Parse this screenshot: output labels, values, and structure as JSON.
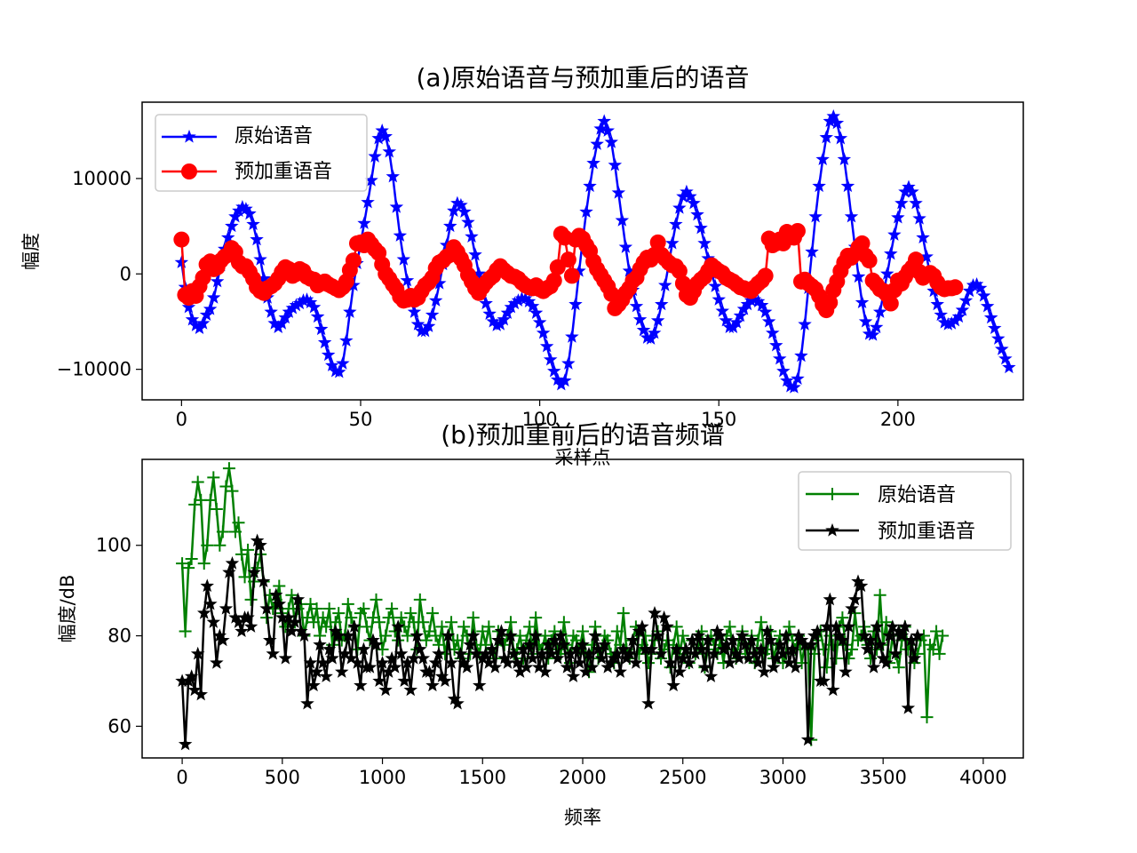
{
  "chart_data": [
    {
      "type": "line",
      "title": "(a)原始语音与预加重后的语音",
      "xlabel": "采样点",
      "ylabel": "幅度",
      "xlim": [
        -11,
        235
      ],
      "ylim": [
        -13200,
        18000
      ],
      "xticks": [
        0,
        50,
        100,
        150,
        200
      ],
      "yticks": [
        -10000,
        0,
        10000
      ],
      "ytick_labels": [
        "−10000",
        "0",
        "10000"
      ],
      "legend_position": "upper-left",
      "grid": false,
      "x": "0..224 (sample index)",
      "series": [
        {
          "name": "原始语音",
          "color": "#0000ff",
          "marker": "star",
          "values": [
            1200,
            -1400,
            -3500,
            -4800,
            -5400,
            -5700,
            -5200,
            -4300,
            -3700,
            -2500,
            -800,
            900,
            2600,
            3800,
            5000,
            6000,
            6600,
            7000,
            6800,
            6300,
            5200,
            3600,
            1500,
            -500,
            -2500,
            -4000,
            -5200,
            -5600,
            -5200,
            -4600,
            -4000,
            -3600,
            -3300,
            -3100,
            -2800,
            -2700,
            -3000,
            -3500,
            -4500,
            -5800,
            -7200,
            -8500,
            -9600,
            -10200,
            -10300,
            -9400,
            -7000,
            -4000,
            -1200,
            1100,
            3200,
            5300,
            7500,
            9800,
            12300,
            14200,
            15000,
            14400,
            12800,
            10200,
            7000,
            4000,
            1500,
            -700,
            -2500,
            -4000,
            -5300,
            -6000,
            -6000,
            -5500,
            -4300,
            -2800,
            -1000,
            1000,
            3000,
            5000,
            6600,
            7400,
            7200,
            6500,
            5400,
            3900,
            2000,
            0,
            -1700,
            -3100,
            -4200,
            -5000,
            -5400,
            -5300,
            -4800,
            -4100,
            -3500,
            -3100,
            -2800,
            -2600,
            -2600,
            -2900,
            -3400,
            -4100,
            -5100,
            -6200,
            -7600,
            -9000,
            -10200,
            -11100,
            -11600,
            -11200,
            -9400,
            -6600,
            -3200,
            300,
            3500,
            6500,
            9200,
            11600,
            13600,
            15200,
            16000,
            15000,
            13800,
            11400,
            8500,
            5600,
            2800,
            300,
            -1700,
            -3400,
            -4800,
            -5900,
            -6700,
            -6800,
            -6200,
            -4900,
            -3200,
            -1200,
            1000,
            3200,
            5200,
            6900,
            8100,
            8600,
            8100,
            7400,
            6200,
            4800,
            3200,
            1600,
            100,
            -1300,
            -2700,
            -3900,
            -4900,
            -5600,
            -5600,
            -5100,
            -4400,
            -3700,
            -3200,
            -2800,
            -2700,
            -2900,
            -3300,
            -4000,
            -5000,
            -6200,
            -7500,
            -8900,
            -10200,
            -11200,
            -11800,
            -11900,
            -11000,
            -8600,
            -5300,
            -1500,
            2300,
            6000,
            9200,
            12000,
            14300,
            16000,
            16500,
            15800,
            14200,
            12000,
            9200,
            6000,
            2800,
            -300,
            -3000,
            -5000,
            -6300,
            -6400,
            -5600,
            -4000,
            -2000,
            0,
            2100,
            4100,
            5900,
            7400,
            8600,
            9100,
            8600,
            7400,
            5800,
            3800,
            1800,
            -100,
            -1800,
            -3200,
            -4300,
            -5100,
            -5300,
            -5200,
            -4900,
            -4500,
            -3800,
            -2800,
            -1800,
            -1200,
            -1100,
            -1500,
            -2300,
            -3400,
            -4600,
            -5700,
            -6800,
            -7900,
            -8900,
            -9800
          ]
        },
        {
          "name": "预加重语音",
          "color": "#ff0000",
          "marker": "circle",
          "values": [
            3600,
            -2200,
            -2500,
            -1800,
            -2300,
            -1300,
            -400,
            1000,
            1300,
            500,
            700,
            1400,
            1800,
            2000,
            2700,
            2300,
            1200,
            800,
            800,
            200,
            -500,
            -1400,
            -1800,
            -2000,
            -1500,
            -1300,
            -1000,
            -500,
            200,
            700,
            500,
            -200,
            0,
            500,
            300,
            -300,
            -500,
            -600,
            -1200,
            -1000,
            -800,
            -1100,
            -1300,
            -1500,
            -1700,
            -1400,
            -800,
            400,
            1400,
            3200,
            3300,
            3000,
            3600,
            3100,
            2600,
            2200,
            1000,
            0,
            -500,
            -1100,
            -1600,
            -2400,
            -2800,
            -2700,
            -2300,
            -2700,
            -2500,
            -1800,
            -1200,
            -900,
            -400,
            600,
            1200,
            1400,
            1800,
            2000,
            2800,
            2300,
            1600,
            900,
            -100,
            -800,
            -1500,
            -2000,
            -1400,
            -900,
            -500,
            -200,
            400,
            800,
            400,
            100,
            -200,
            -300,
            -500,
            -900,
            -1200,
            -1400,
            -1500,
            -1200,
            -1600,
            -1800,
            -1500,
            -1300,
            -700,
            700,
            4200,
            3800,
            1500,
            -200,
            3600,
            4000,
            3700,
            3000,
            2400,
            1300,
            500,
            -100,
            -700,
            -1300,
            -2100,
            -3600,
            -3200,
            -2700,
            -2000,
            -1500,
            -700,
            -400,
            500,
            1200,
            1700,
            1500,
            2000,
            3300,
            2000,
            1600,
            1200,
            900,
            800,
            300,
            -1000,
            -2200,
            -2500,
            -1800,
            -1000,
            -600,
            -300,
            300,
            900,
            600,
            300,
            100,
            -400,
            -600,
            -800,
            -1100,
            -1400,
            -1500,
            -1700,
            -1800,
            -1400,
            -1000,
            -700,
            -200,
            3700,
            3000,
            3200,
            3600,
            3200,
            4400,
            4100,
            3800,
            4500,
            -800,
            -600,
            -1000,
            -1300,
            -1600,
            -2300,
            -3200,
            -3800,
            -3000,
            -1700,
            -800,
            300,
            1200,
            1900,
            1700,
            2100,
            2800,
            3200,
            1900,
            1400,
            -700,
            -1100,
            -1600,
            -1800,
            -2200,
            -3100,
            -1700,
            -700,
            -1000,
            -300,
            300,
            700,
            1500,
            200,
            -400,
            -100,
            100,
            -200,
            -900,
            -1400,
            -1600,
            -1500,
            -1500,
            -1400
          ]
        }
      ]
    },
    {
      "type": "line",
      "title": "(b)预加重前后的语音频谱",
      "xlabel": "频率",
      "ylabel": "幅度/dB",
      "xlim": [
        -200,
        4200
      ],
      "ylim": [
        53,
        119
      ],
      "xticks": [
        0,
        500,
        1000,
        1500,
        2000,
        2500,
        3000,
        3500,
        4000
      ],
      "yticks": [
        60,
        80,
        100
      ],
      "legend_position": "upper-right",
      "grid": false,
      "x": "0..4000 step 15.625 Hz",
      "series": [
        {
          "name": "原始语音",
          "color": "#008000",
          "marker": "plus",
          "values": [
            96,
            81,
            95,
            97,
            109,
            114,
            110,
            96,
            100,
            110,
            115,
            108,
            100,
            103,
            113,
            117,
            112,
            103,
            105,
            98,
            93,
            99,
            88,
            92,
            95,
            98,
            92,
            84,
            89,
            86,
            88,
            91,
            85,
            82,
            86,
            89,
            83,
            86,
            87,
            80,
            84,
            87,
            83,
            86,
            80,
            84,
            82,
            86,
            78,
            83,
            85,
            79,
            80,
            87,
            84,
            82,
            77,
            85,
            86,
            82,
            79,
            84,
            88,
            83,
            77,
            80,
            84,
            86,
            81,
            79,
            84,
            82,
            80,
            85,
            83,
            77,
            88,
            83,
            79,
            81,
            85,
            80,
            78,
            82,
            76,
            80,
            83,
            77,
            79,
            75,
            82,
            80,
            76,
            84,
            78,
            76,
            81,
            78,
            82,
            77,
            75,
            81,
            79,
            78,
            80,
            83,
            76,
            77,
            80,
            75,
            79,
            82,
            76,
            84,
            78,
            77,
            80,
            75,
            79,
            81,
            77,
            76,
            83,
            78,
            74,
            80,
            79,
            77,
            81,
            76,
            72,
            78,
            82,
            75,
            77,
            80,
            79,
            76,
            74,
            81,
            78,
            85,
            77,
            75,
            79,
            82,
            76,
            78,
            80,
            74,
            76,
            79,
            81,
            75,
            77,
            79,
            73,
            78,
            82,
            76,
            80,
            77,
            74,
            79,
            76,
            78,
            81,
            73,
            77,
            80,
            78,
            76,
            79,
            74,
            80,
            82,
            77,
            75,
            79,
            81,
            76,
            78,
            80,
            74,
            79,
            83,
            76,
            77,
            81,
            75,
            78,
            80,
            74,
            76,
            82,
            79,
            77,
            80,
            74,
            78,
            77,
            57,
            76,
            79,
            81,
            77,
            73,
            80,
            78,
            75,
            82,
            84,
            78,
            75,
            77,
            85,
            79,
            80,
            82,
            78,
            75,
            81,
            77,
            89,
            78,
            83,
            74,
            80,
            76,
            73,
            79,
            82,
            77,
            78,
            74,
            76,
            79,
            80,
            62,
            78,
            77,
            81,
            76,
            80
          ]
        },
        {
          "name": "预加重语音",
          "color": "#000000",
          "marker": "star",
          "values": [
            70,
            56,
            70,
            71,
            68,
            76,
            67,
            85,
            91,
            87,
            83,
            74,
            80,
            79,
            86,
            94,
            96,
            84,
            83,
            81,
            84,
            84,
            82,
            94,
            101,
            100,
            92,
            86,
            79,
            76,
            89,
            87,
            84,
            75,
            84,
            81,
            83,
            88,
            81,
            80,
            65,
            74,
            69,
            72,
            78,
            74,
            71,
            77,
            75,
            81,
            80,
            72,
            76,
            80,
            75,
            82,
            74,
            69,
            77,
            73,
            73,
            79,
            78,
            70,
            74,
            68,
            72,
            75,
            73,
            82,
            76,
            70,
            74,
            68,
            75,
            80,
            77,
            75,
            72,
            72,
            69,
            74,
            76,
            71,
            70,
            80,
            74,
            66,
            65,
            76,
            74,
            73,
            78,
            80,
            76,
            69,
            75,
            76,
            74,
            77,
            73,
            79,
            81,
            75,
            74,
            80,
            76,
            74,
            72,
            77,
            73,
            78,
            75,
            80,
            73,
            76,
            72,
            78,
            76,
            79,
            75,
            80,
            78,
            73,
            76,
            71,
            77,
            74,
            78,
            72,
            76,
            73,
            80,
            77,
            75,
            78,
            73,
            74,
            75,
            76,
            72,
            77,
            75,
            76,
            79,
            74,
            81,
            82,
            77,
            65,
            77,
            85,
            80,
            76,
            84,
            82,
            74,
            69,
            77,
            72,
            75,
            77,
            74,
            79,
            76,
            80,
            77,
            73,
            79,
            71,
            76,
            81,
            80,
            77,
            78,
            74,
            79,
            76,
            75,
            80,
            78,
            75,
            79,
            76,
            74,
            77,
            72,
            81,
            79,
            73,
            75,
            78,
            76,
            80,
            74,
            77,
            73,
            80,
            79,
            78,
            57,
            78,
            80,
            81,
            70,
            70,
            82,
            88,
            68,
            82,
            80,
            79,
            72,
            82,
            86,
            88,
            92,
            91,
            80,
            77,
            79,
            73,
            82,
            78,
            75,
            74,
            80,
            82,
            76,
            81,
            80,
            82,
            64,
            79,
            75,
            80
          ]
        }
      ]
    }
  ]
}
